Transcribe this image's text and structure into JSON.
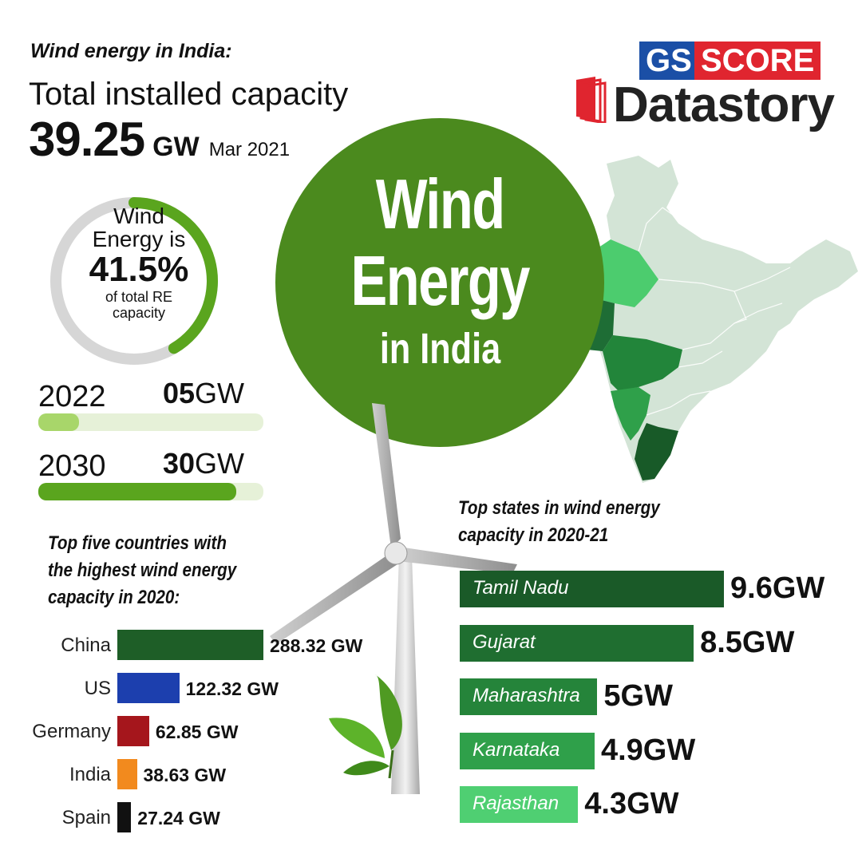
{
  "header": {
    "subtitle": "Wind energy in India:",
    "capacity_label": "Total installed capacity",
    "capacity_value": "39.25",
    "capacity_unit": "GW",
    "capacity_date": "Mar 2021"
  },
  "logo": {
    "part1": "GS",
    "part2": "SCORE",
    "part3": "Datastory"
  },
  "title": {
    "line1": "Wind",
    "line2": "Energy",
    "line3": "in India"
  },
  "share": {
    "line1": "Wind",
    "line2": "Energy is",
    "percent_text": "41.5%",
    "percent": 41.5,
    "line3": "of total RE",
    "line4": "capacity"
  },
  "targets": [
    {
      "year": "2022",
      "value": "05",
      "unit": "GW",
      "fraction": 0.18
    },
    {
      "year": "2030",
      "value": "30",
      "unit": "GW",
      "fraction": 0.88
    }
  ],
  "colors": {
    "title_green": "#4b8a1e",
    "donut_green": "#5aa51e",
    "donut_track": "#d6d6d6",
    "target_2022": "#a8d66a",
    "target_2030": "#5aa51e",
    "target_track": "#e6f1d8",
    "china": "#1e5e27",
    "us": "#1c3fae",
    "germany": "#a5161c",
    "india": "#f28a1e",
    "spain": "#111111"
  },
  "chart_data": [
    {
      "type": "bar",
      "title": "Top five countries with the highest wind energy capacity in 2020:",
      "title_lines": [
        "Top five countries with",
        "the highest wind energy",
        "capacity in 2020:"
      ],
      "categories": [
        "China",
        "US",
        "Germany",
        "India",
        "Spain"
      ],
      "values": [
        288.32,
        122.32,
        62.85,
        38.63,
        27.24
      ],
      "value_labels": [
        "288.32 GW",
        "122.32 GW",
        "62.85 GW",
        "38.63 GW",
        "27.24 GW"
      ],
      "colors": [
        "#1e5e27",
        "#1c3fae",
        "#a5161c",
        "#f28a1e",
        "#111111"
      ],
      "orientation": "horizontal"
    },
    {
      "type": "bar",
      "title": "Top states in wind energy capacity in 2020-21",
      "title_lines": [
        "Top states in wind energy",
        "capacity in 2020-21"
      ],
      "categories": [
        "Tamil Nadu",
        "Gujarat",
        "Maharashtra",
        "Karnataka",
        "Rajasthan"
      ],
      "values": [
        9.6,
        8.5,
        5,
        4.9,
        4.3
      ],
      "value_labels": [
        "9.6GW",
        "8.5GW",
        "5GW",
        "4.9GW",
        "4.3GW"
      ],
      "colors": [
        "#1a5a28",
        "#1f6e30",
        "#25843a",
        "#2fa04a",
        "#4fcf72"
      ],
      "orientation": "horizontal"
    }
  ]
}
